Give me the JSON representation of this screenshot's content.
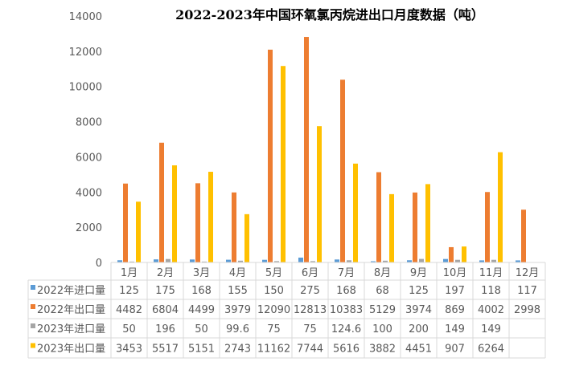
{
  "chart_data": {
    "type": "bar",
    "title": "2022-2023年中国环氧氯丙烷进出口月度数据（吨）",
    "categories": [
      "1月",
      "2月",
      "3月",
      "4月",
      "5月",
      "6月",
      "7月",
      "8月",
      "9月",
      "10月",
      "11月",
      "12月"
    ],
    "ylim": [
      0,
      14000
    ],
    "yticks": [
      "0",
      "2000",
      "4000",
      "6000",
      "8000",
      "10000",
      "12000",
      "14000"
    ],
    "grid": false,
    "legend": "data-table",
    "series": [
      {
        "name": "2022年进口量",
        "color": "#5B9BD5",
        "values": [
          125,
          175,
          168,
          155,
          150,
          275,
          168,
          68,
          125,
          197,
          118,
          117
        ],
        "labels": [
          "125",
          "175",
          "168",
          "155",
          "150",
          "275",
          "168",
          "68",
          "125",
          "197",
          "118",
          "117"
        ]
      },
      {
        "name": "2022年出口量",
        "color": "#ED7D31",
        "values": [
          4482,
          6804,
          4499,
          3979,
          12090,
          12813,
          10383,
          5129,
          3974,
          869,
          4002,
          2998
        ],
        "labels": [
          "4482",
          "6804",
          "4499",
          "3979",
          "12090",
          "12813",
          "10383",
          "5129",
          "3974",
          "869",
          "4002",
          "2998"
        ]
      },
      {
        "name": "2023年进口量",
        "color": "#A5A5A5",
        "values": [
          50,
          196,
          50,
          99.6,
          75,
          75,
          124.6,
          100,
          200,
          149,
          149,
          null
        ],
        "labels": [
          "50",
          "196",
          "50",
          "99.6",
          "75",
          "75",
          "124.6",
          "100",
          "200",
          "149",
          "149",
          ""
        ]
      },
      {
        "name": "2023年出口量",
        "color": "#FFC000",
        "values": [
          3453,
          5517,
          5151,
          2743,
          11162,
          7744,
          5616,
          3882,
          4451,
          907,
          6264,
          null
        ],
        "labels": [
          "3453",
          "5517",
          "5151",
          "2743",
          "11162",
          "7744",
          "5616",
          "3882",
          "4451",
          "907",
          "6264",
          ""
        ]
      }
    ]
  }
}
